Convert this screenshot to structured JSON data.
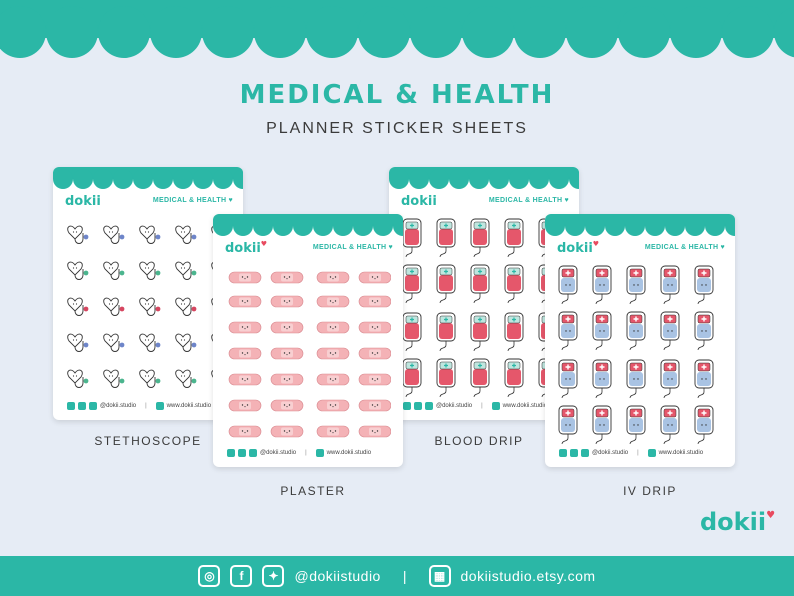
{
  "title": "MEDICAL & HEALTH",
  "subtitle": "PLANNER STICKER SHEETS",
  "sheet_brand": "dokii",
  "sheet_label": "MEDICAL & HEALTH ♥",
  "sheet_footer": {
    "handle": "@dokii.studio",
    "site": "www.dokii.studio"
  },
  "captions": {
    "stethoscope": "STETHOSCOPE",
    "plaster": "PLASTER",
    "blood_drip": "BLOOD DRIP",
    "iv_drip": "IV DRIP"
  },
  "footer_bar": {
    "handle": "@dokiistudio",
    "separator": "|",
    "shop": "dokiistudio.etsy.com"
  },
  "corner_logo": "dokii",
  "colors": {
    "teal": "#2bb7a6",
    "background": "#e6ecf5",
    "red": "#e84a5f",
    "pink": "#f4b2b6",
    "blue_fluid": "#a9c3e3",
    "blood": "#e5576b"
  },
  "icons": [
    "instagram-icon",
    "facebook-icon",
    "twitter-icon",
    "shop-icon",
    "heart-icon"
  ]
}
